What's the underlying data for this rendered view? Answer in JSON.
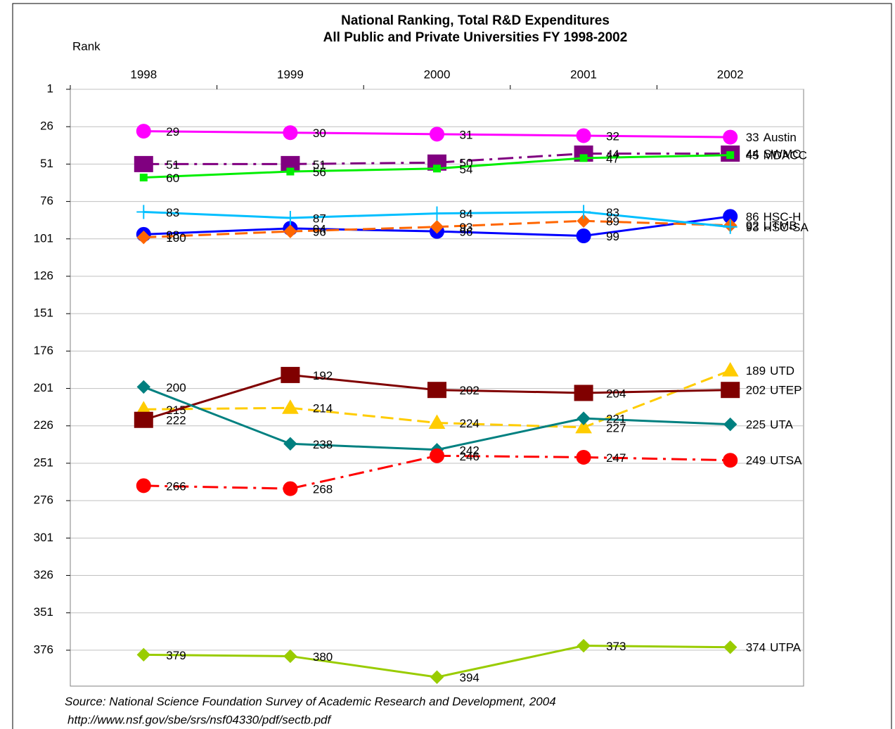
{
  "chart_data": {
    "type": "line",
    "title": [
      "National Ranking, Total R&D Expenditures",
      "All Public and Private Universities FY 1998-2002"
    ],
    "y_label": "Rank",
    "source": [
      "Source:  National Science Foundation Survey of Academic Research and Development, 2004",
      "http://www.nsf.gov/sbe/srs/nsf04330/pdf/sectb.pdf"
    ],
    "categories": [
      "1998",
      "1999",
      "2000",
      "2001",
      "2002"
    ],
    "ylim": [
      1,
      400
    ],
    "y_inverted": true,
    "yticks": [
      1,
      26,
      51,
      76,
      101,
      126,
      151,
      176,
      201,
      226,
      251,
      276,
      301,
      326,
      351,
      376
    ],
    "grid": true,
    "series": [
      {
        "name": "Austin",
        "color": "#ff00ff",
        "marker": "circle",
        "dash": "solid",
        "values": [
          29,
          30,
          31,
          32,
          33
        ]
      },
      {
        "name": "SWMC",
        "color": "#800080",
        "marker": "square",
        "dash": "dashdot",
        "values": [
          51,
          51,
          50,
          44,
          44
        ]
      },
      {
        "name": "MDACC",
        "color": "#00ee00",
        "marker": "smallsquare",
        "dash": "solid",
        "values": [
          60,
          56,
          54,
          47,
          45
        ]
      },
      {
        "name": "HSC-H",
        "color": "#0000ff",
        "marker": "circle",
        "dash": "solid",
        "values": [
          98,
          94,
          96,
          99,
          86
        ]
      },
      {
        "name": "UTMB",
        "color": "#ff6600",
        "marker": "diamond",
        "dash": "dashed",
        "values": [
          100,
          96,
          93,
          89,
          92
        ]
      },
      {
        "name": "HSC-SA",
        "color": "#00bfff",
        "marker": "plus",
        "dash": "solid",
        "values": [
          83,
          87,
          84,
          83,
          93
        ]
      },
      {
        "name": "UTD",
        "color": "#ffcc00",
        "marker": "triangle",
        "dash": "dashed",
        "values": [
          215,
          214,
          224,
          227,
          189
        ]
      },
      {
        "name": "UTEP",
        "color": "#800000",
        "marker": "square",
        "dash": "solid",
        "values": [
          222,
          192,
          202,
          204,
          202
        ]
      },
      {
        "name": "UTA",
        "color": "#008080",
        "marker": "diamond",
        "dash": "solid",
        "values": [
          200,
          238,
          242,
          221,
          225
        ]
      },
      {
        "name": "UTSA",
        "color": "#ff0000",
        "marker": "circle",
        "dash": "dashdot",
        "values": [
          266,
          268,
          246,
          247,
          249
        ]
      },
      {
        "name": "UTPA",
        "color": "#99cc00",
        "marker": "diamond",
        "dash": "solid",
        "values": [
          379,
          380,
          394,
          373,
          374
        ]
      }
    ]
  }
}
